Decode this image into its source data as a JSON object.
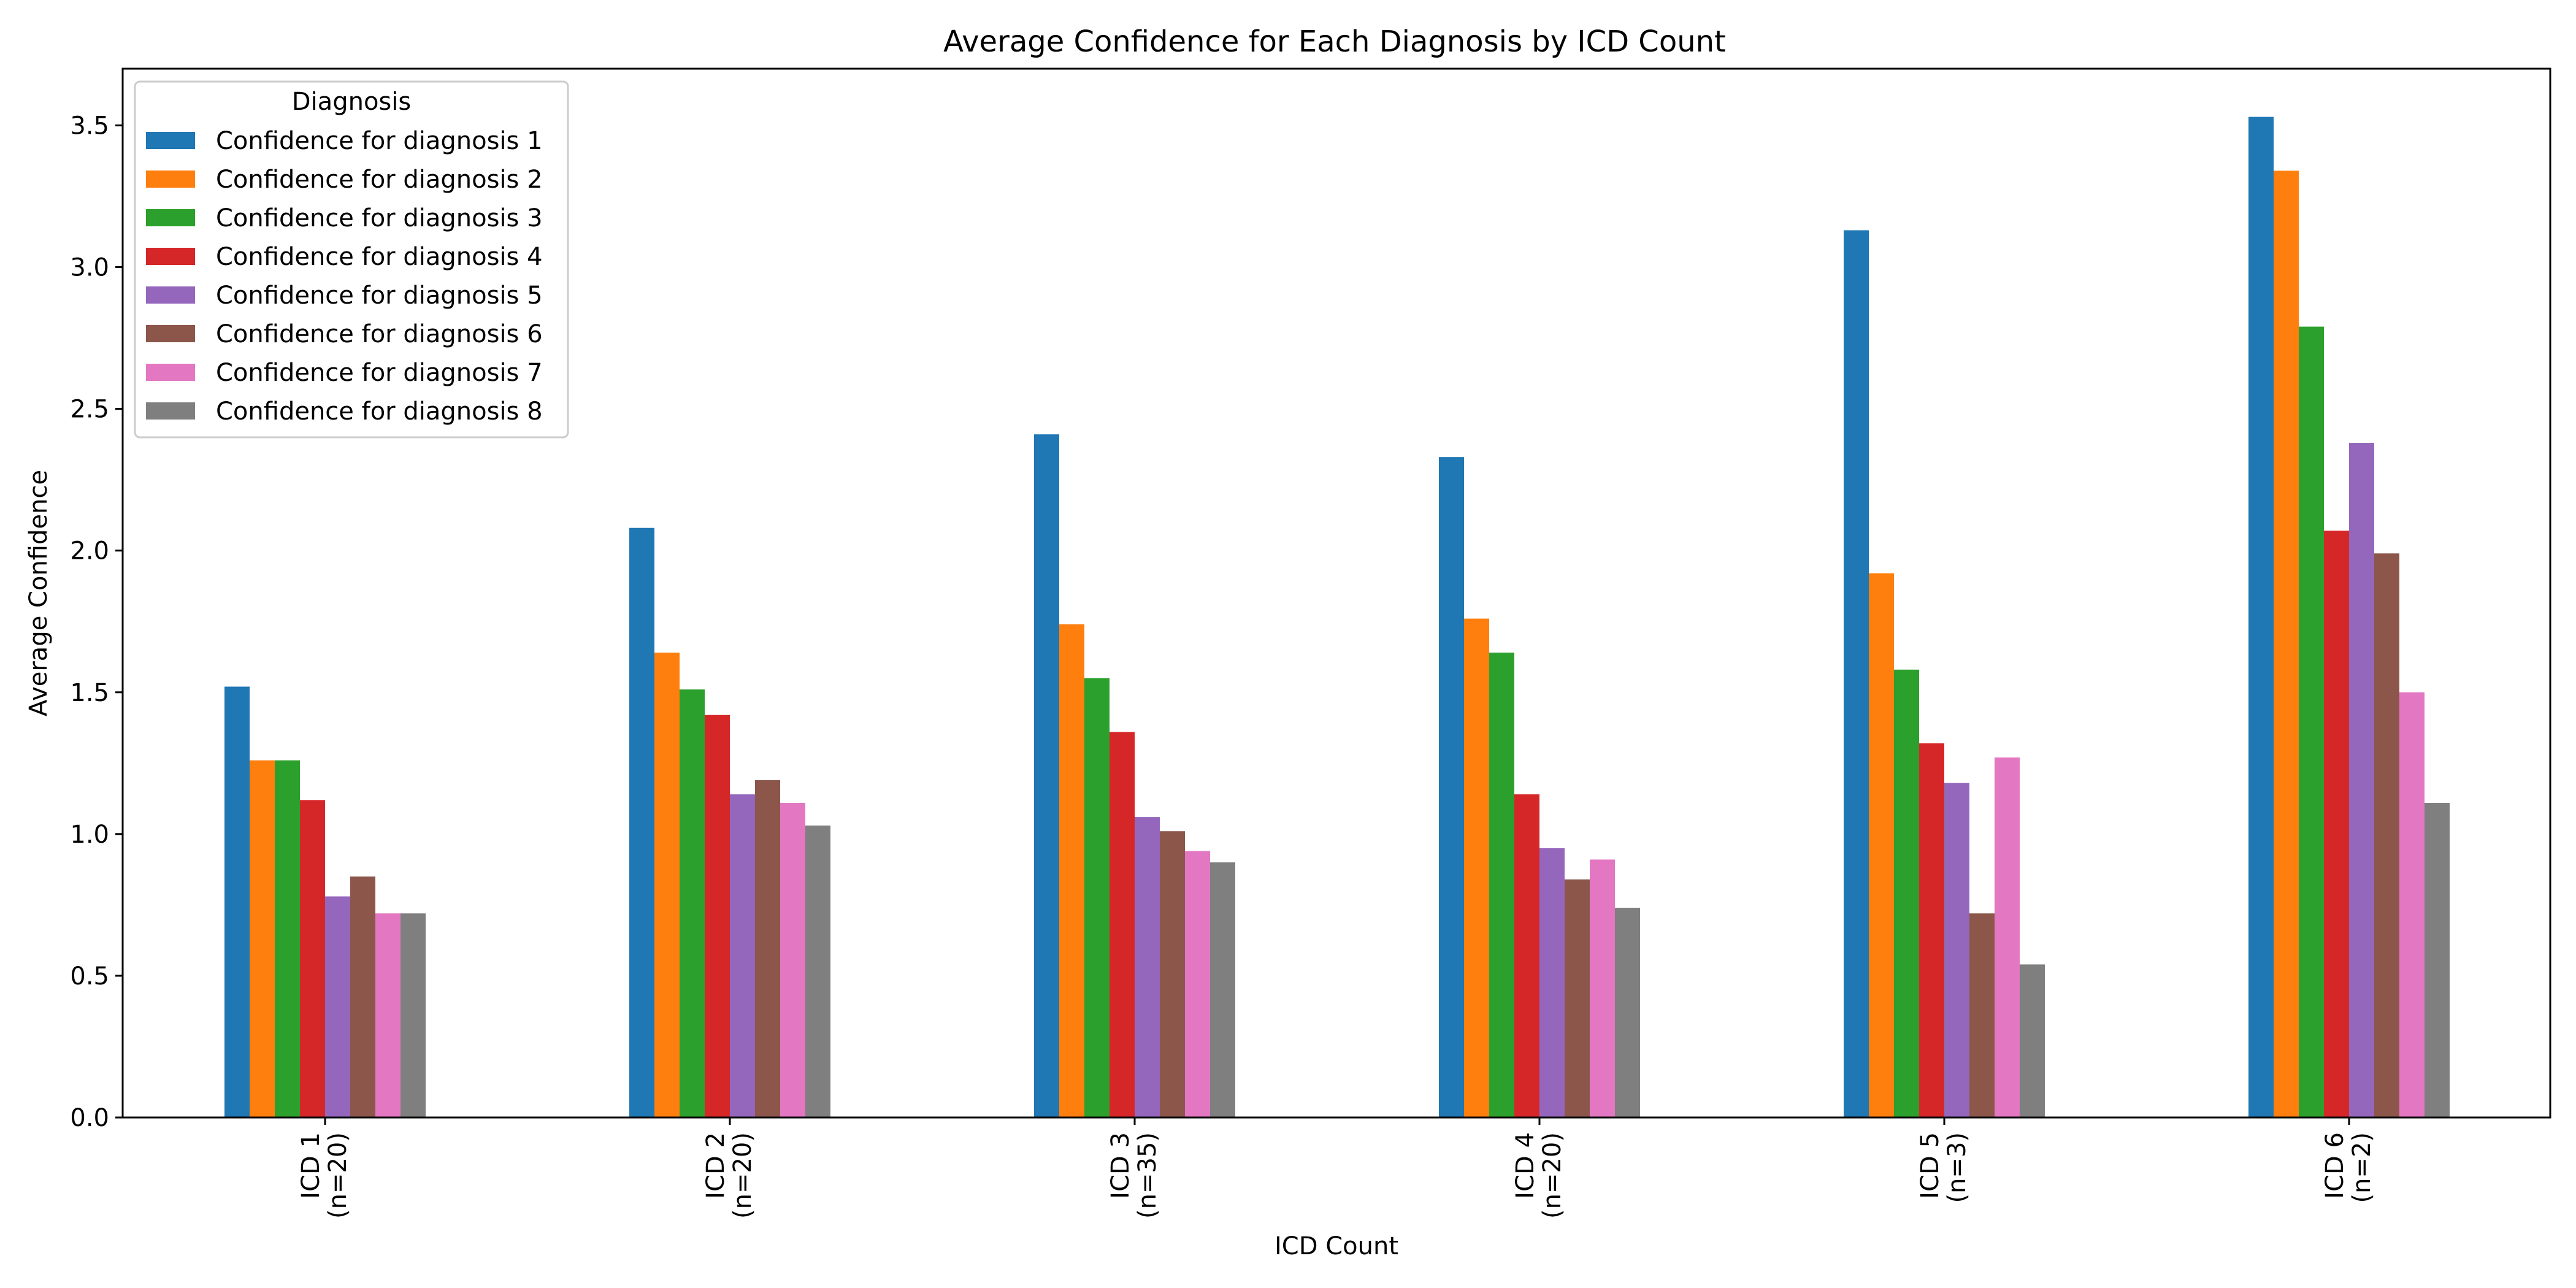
{
  "chart_data": {
    "type": "bar",
    "title": "Average Confidence for Each Diagnosis by ICD Count",
    "xlabel": "ICD Count",
    "ylabel": "Average Confidence",
    "categories": [
      [
        "ICD 1",
        "(n=20)"
      ],
      [
        "ICD 2",
        "(n=20)"
      ],
      [
        "ICD 3",
        "(n=35)"
      ],
      [
        "ICD 4",
        "(n=20)"
      ],
      [
        "ICD 5",
        "(n=3)"
      ],
      [
        "ICD 6",
        "(n=2)"
      ]
    ],
    "ylim": [
      0,
      3.7
    ],
    "yticks": [
      "0.0",
      "0.5",
      "1.0",
      "1.5",
      "2.0",
      "2.5",
      "3.0",
      "3.5"
    ],
    "grid": false,
    "legend": {
      "title": "Diagnosis",
      "placement": "top-left"
    },
    "series": [
      {
        "name": "Confidence for diagnosis 1",
        "color": "#1f77b4",
        "values": [
          1.52,
          2.08,
          2.41,
          2.33,
          3.13,
          3.53
        ]
      },
      {
        "name": "Confidence for diagnosis 2",
        "color": "#ff7f0e",
        "values": [
          1.26,
          1.64,
          1.74,
          1.76,
          1.92,
          3.34
        ]
      },
      {
        "name": "Confidence for diagnosis 3",
        "color": "#2ca02c",
        "values": [
          1.26,
          1.51,
          1.55,
          1.64,
          1.58,
          2.79
        ]
      },
      {
        "name": "Confidence for diagnosis 4",
        "color": "#d62728",
        "values": [
          1.12,
          1.42,
          1.36,
          1.14,
          1.32,
          2.07
        ]
      },
      {
        "name": "Confidence for diagnosis 5",
        "color": "#9467bd",
        "values": [
          0.78,
          1.14,
          1.06,
          0.95,
          1.18,
          2.38
        ]
      },
      {
        "name": "Confidence for diagnosis 6",
        "color": "#8c564b",
        "values": [
          0.85,
          1.19,
          1.01,
          0.84,
          0.72,
          1.99
        ]
      },
      {
        "name": "Confidence for diagnosis 7",
        "color": "#e377c2",
        "values": [
          0.72,
          1.11,
          0.94,
          0.91,
          1.27,
          1.5
        ]
      },
      {
        "name": "Confidence for diagnosis 8",
        "color": "#7f7f7f",
        "values": [
          0.72,
          1.03,
          0.9,
          0.74,
          0.54,
          1.11
        ]
      }
    ]
  }
}
